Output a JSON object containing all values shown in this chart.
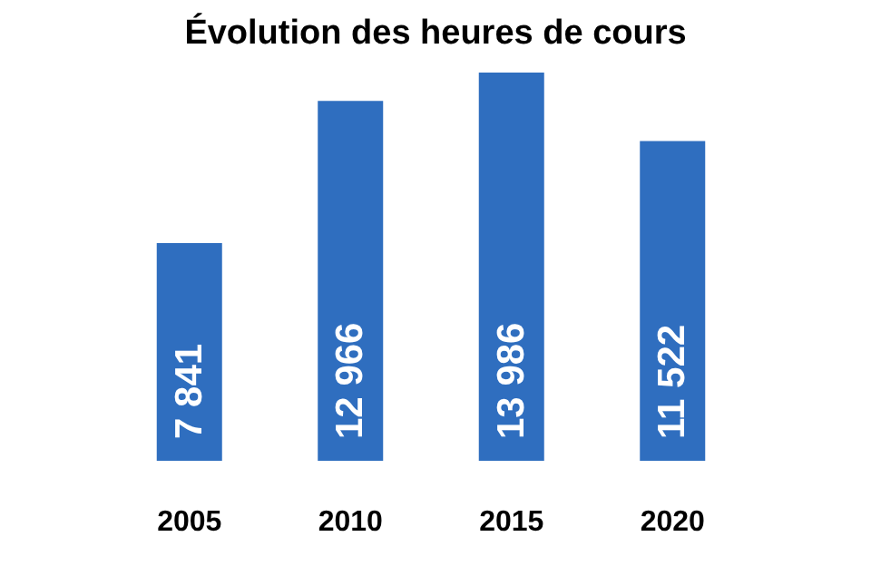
{
  "chart_data": {
    "type": "bar",
    "title": "Évolution des heures de cours",
    "categories": [
      "2005",
      "2010",
      "2015",
      "2020"
    ],
    "values": [
      7841,
      12966,
      13986,
      11522
    ],
    "value_labels": [
      "7 841",
      "12 966",
      "13 986",
      "11 522"
    ],
    "color": "#2f6ebf"
  }
}
